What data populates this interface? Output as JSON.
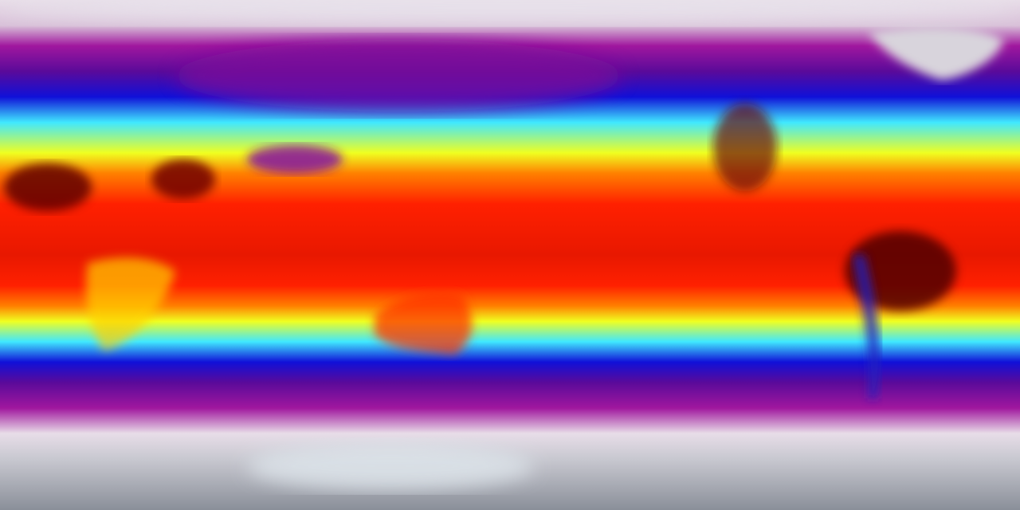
{
  "map": {
    "projection": "equirectangular",
    "palette": {
      "coldest": "#8a8f99",
      "cold_white": "#e8dde8",
      "magenta": "#a0179e",
      "purple": "#5a0a9a",
      "blue": "#1010d8",
      "cyan": "#40e8ff",
      "yellow": "#f0ff20",
      "orange": "#ff8000",
      "red": "#ff2000",
      "darkest_red": "#500000"
    }
  }
}
